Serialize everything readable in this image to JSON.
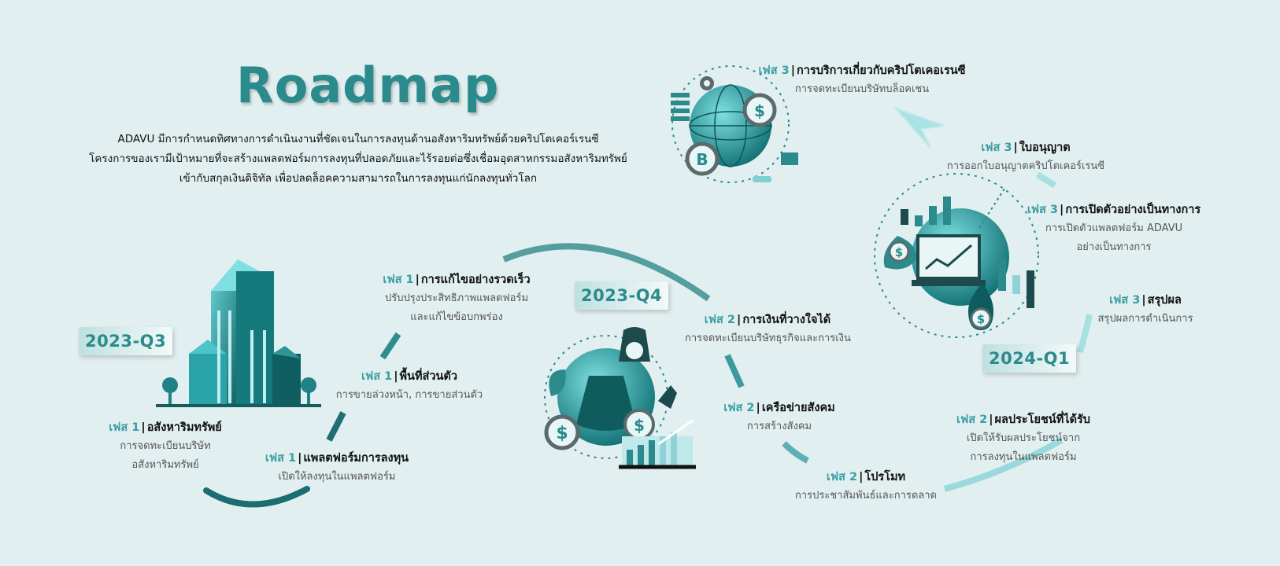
{
  "title": "Roadmap",
  "intro_lines": [
    "ADAVU มีการกำหนดทิศทางการดำเนินงานที่ชัดเจนในการลงทุนด้านอสังหาริมทรัพย์ด้วยคริปโตเคอร์เรนซี",
    "โครงการของเรามีเป้าหมายที่จะสร้างแพลตฟอร์มการลงทุนที่ปลอดภัยและไร้รอยต่อซึ่งเชื่อมอุตสาหกรรมอสังหาริมทรัพย์",
    "เข้ากับสกุลเงินดิจิทัล เพื่อปลดล็อคความสามารถในการลงทุนแก่นักลงทุนทั่วโลก"
  ],
  "quarters": [
    "2023-Q3",
    "2023-Q4",
    "2024-Q1"
  ],
  "milestones": [
    {
      "phase": "เฟส 1",
      "title": "อสังหาริมทรัพย์",
      "desc": [
        "การจดทะเบียนบริษัท",
        "อสังหาริมทรัพย์"
      ]
    },
    {
      "phase": "เฟส 1",
      "title": "แพลตฟอร์มการลงทุน",
      "desc": [
        "เปิดให้ลงทุนในแพลตฟอร์ม"
      ]
    },
    {
      "phase": "เฟส 1",
      "title": "พื้นที่ส่วนตัว",
      "desc": [
        "การขายล่วงหน้า, การขายส่วนตัว"
      ]
    },
    {
      "phase": "เฟส 1",
      "title": "การแก้ไขอย่างรวดเร็ว",
      "desc": [
        "ปรับปรุงประสิทธิภาพแพลตฟอร์ม",
        "และแก้ไขข้อบกพร่อง"
      ]
    },
    {
      "phase": "เฟส 2",
      "title": "การเงินที่วางใจได้",
      "desc": [
        "การจดทะเบียนบริษัทธุรกิจและการเงิน"
      ]
    },
    {
      "phase": "เฟส 2",
      "title": "เครือข่ายสังคม",
      "desc": [
        "การสร้างสังคม"
      ]
    },
    {
      "phase": "เฟส 2",
      "title": "โปรโมท",
      "desc": [
        "การประชาสัมพันธ์และการตลาด"
      ]
    },
    {
      "phase": "เฟส 2",
      "title": "ผลประโยชน์ที่ได้รับ",
      "desc": [
        "เปิดให้รับผลประโยชน์จาก",
        "การลงทุนในแพลตฟอร์ม"
      ]
    },
    {
      "phase": "เฟส 3",
      "title": "สรุปผล",
      "desc": [
        "สรุปผลการดำเนินการ"
      ]
    },
    {
      "phase": "เฟส 3",
      "title": "การเปิดตัวอย่างเป็นทางการ",
      "desc": [
        "การเปิดตัวแพลตฟอร์ม ADAVU",
        "อย่างเป็นทางการ"
      ]
    },
    {
      "phase": "เฟส 3",
      "title": "ใบอนุญาต",
      "desc": [
        "การออกใบอนุญาตคริปโตเคอร์เรนซี"
      ]
    },
    {
      "phase": "เฟส 3",
      "title": "การบริการเกี่ยวกับคริปโตเคอเรนซี",
      "desc": [
        "การจดทะเบียนบริษัทบล็อคเชน"
      ]
    }
  ],
  "colors": {
    "accent": "#2b8a8c",
    "accent_light": "#8fd3d6",
    "background": "#e2eff0"
  }
}
